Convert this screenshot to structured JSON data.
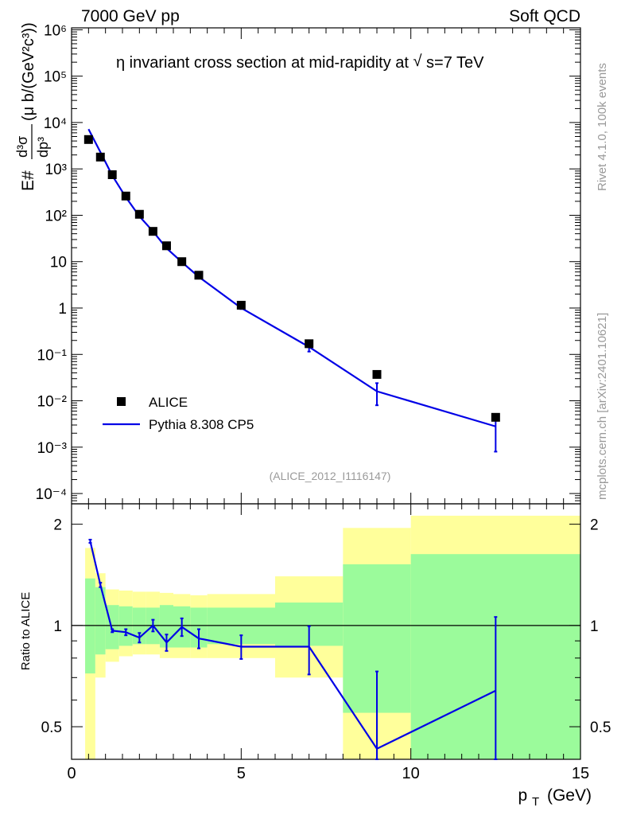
{
  "header": {
    "left": "7000 GeV pp",
    "right": "Soft QCD"
  },
  "side_text": {
    "rivet": "Rivet 4.1.0,  100k events",
    "mcplots": "mcplots.cern.ch [arXiv:2401.10621]"
  },
  "chart_data": [
    {
      "type": "scatter",
      "role": "main",
      "title_prefix": "η invariant cross section at mid-rapidity at",
      "title_sqrt": "√",
      "title_suffix": "s=7 TeV",
      "analysis_label": "(ALICE_2012_I1116147)",
      "ylabel": "E#d³σ/dp³ (μ b/(GeV²c³))",
      "ylabel_parts": {
        "prefix": "E#",
        "fraction_num": "d³σ",
        "fraction_den": "dp³",
        "units": "(μ b/(GeV²c³))"
      },
      "yscale": "log",
      "ylim": [
        6e-05,
        1100000.0
      ],
      "xlim": [
        0,
        15
      ],
      "y_ticks": [
        {
          "value": 0.0001,
          "label": "10⁻⁴"
        },
        {
          "value": 0.001,
          "label": "10⁻³"
        },
        {
          "value": 0.01,
          "label": "10⁻²"
        },
        {
          "value": 0.1,
          "label": "10⁻¹"
        },
        {
          "value": 1,
          "label": "1"
        },
        {
          "value": 10,
          "label": "10"
        },
        {
          "value": 100.0,
          "label": "10²"
        },
        {
          "value": 1000.0,
          "label": "10³"
        },
        {
          "value": 10000.0,
          "label": "10⁴"
        },
        {
          "value": 100000.0,
          "label": "10⁵"
        },
        {
          "value": 1000000.0,
          "label": "10⁶"
        }
      ],
      "legend": [
        {
          "name": "ALICE",
          "marker": "square",
          "color": "#000000"
        },
        {
          "name": "Pythia 8.308 CP5",
          "marker": "line",
          "color": "#0000e6"
        }
      ],
      "series": [
        {
          "name": "ALICE",
          "x": [
            0.5,
            0.85,
            1.2,
            1.6,
            2.0,
            2.4,
            2.8,
            3.25,
            3.75,
            5.0,
            7.0,
            9.0,
            12.5
          ],
          "y": [
            4300,
            1800,
            750,
            260,
            105,
            45,
            22,
            10,
            5.1,
            1.15,
            0.17,
            0.037,
            0.0044
          ]
        },
        {
          "name": "Pythia 8.308 CP5",
          "x": [
            0.5,
            0.85,
            1.2,
            1.6,
            2.0,
            2.4,
            2.8,
            3.25,
            3.75,
            5.0,
            7.0,
            9.0,
            12.5
          ],
          "y": [
            7200,
            2300,
            720,
            245,
            95,
            45,
            19.5,
            9.8,
            4.7,
            1.0,
            0.145,
            0.016,
            0.0028
          ],
          "err_low": [
            0,
            0,
            0,
            0,
            0,
            0,
            0,
            0,
            0,
            0.05,
            0.03,
            0.008,
            0.002
          ],
          "err_high": [
            0,
            0,
            0,
            0,
            0,
            0,
            0,
            0,
            0,
            0.05,
            0.03,
            0.008,
            0.002
          ]
        }
      ]
    },
    {
      "type": "line",
      "role": "ratio",
      "ylabel": "Ratio to ALICE",
      "xlabel_main": "p",
      "xlabel_sub": "T",
      "xlabel_units": "(GeV)",
      "yscale": "log",
      "ylim": [
        0.4,
        2.3
      ],
      "xlim": [
        0,
        15
      ],
      "y_ticks": [
        {
          "value": 0.5,
          "label": "0.5"
        },
        {
          "value": 1,
          "label": "1"
        },
        {
          "value": 2,
          "label": "2"
        }
      ],
      "x_ticks": [
        {
          "value": 0,
          "label": "0"
        },
        {
          "value": 5,
          "label": "5"
        },
        {
          "value": 10,
          "label": "10"
        },
        {
          "value": 15,
          "label": "15"
        }
      ],
      "uncertainty_bands": {
        "edges": [
          0.4,
          0.7,
          1.0,
          1.4,
          1.8,
          2.2,
          2.6,
          3.0,
          3.5,
          4.0,
          6.0,
          8.0,
          10.0,
          15.0
        ],
        "green_low": [
          0.72,
          0.82,
          0.85,
          0.87,
          0.88,
          0.88,
          0.86,
          0.86,
          0.86,
          0.88,
          0.87,
          0.55,
          0.37
        ],
        "green_high": [
          1.38,
          1.3,
          1.15,
          1.14,
          1.13,
          1.13,
          1.15,
          1.14,
          1.13,
          1.13,
          1.17,
          1.52,
          1.63
        ],
        "yellow_low": [
          0.33,
          0.7,
          0.78,
          0.81,
          0.82,
          0.82,
          0.8,
          0.8,
          0.8,
          0.8,
          0.7,
          0.33,
          0.33
        ],
        "yellow_high": [
          1.7,
          1.43,
          1.28,
          1.27,
          1.26,
          1.26,
          1.25,
          1.24,
          1.23,
          1.24,
          1.4,
          1.95,
          2.12
        ],
        "green_color": "#9bfb9b",
        "yellow_color": "#ffff9b"
      },
      "series": [
        {
          "name": "Pythia 8.308 CP5 / ALICE",
          "x": [
            0.55,
            0.85,
            1.2,
            1.6,
            2.0,
            2.4,
            2.8,
            3.25,
            3.75,
            5.0,
            7.0,
            9.0,
            12.5
          ],
          "y": [
            1.78,
            1.32,
            0.965,
            0.955,
            0.92,
            1.0,
            0.89,
            0.99,
            0.915,
            0.865,
            0.865,
            0.43,
            0.64
          ],
          "err_low": [
            0.02,
            0.02,
            0.01,
            0.02,
            0.03,
            0.04,
            0.05,
            0.06,
            0.06,
            0.07,
            0.15,
            0.2,
            0.3
          ],
          "err_high": [
            0.02,
            0.02,
            0.01,
            0.02,
            0.03,
            0.04,
            0.05,
            0.06,
            0.06,
            0.07,
            0.13,
            0.3,
            0.42
          ],
          "color": "#0000e6"
        }
      ]
    }
  ]
}
